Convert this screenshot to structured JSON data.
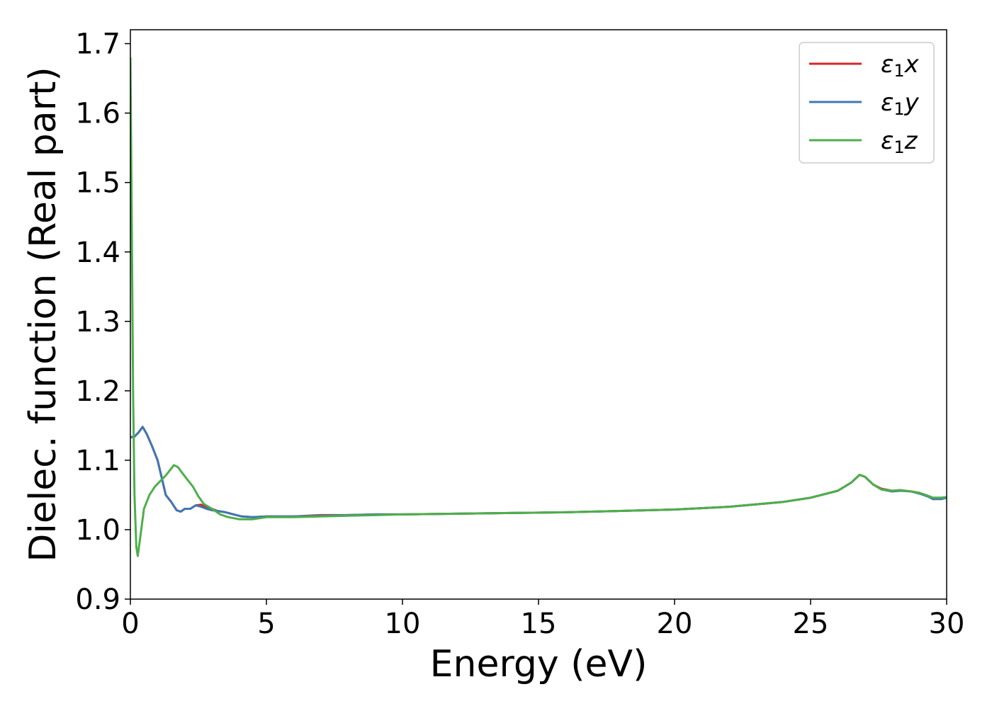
{
  "chart_data": {
    "type": "line",
    "title": "",
    "xlabel": "Energy (eV)",
    "ylabel": "Dielec. function (Real part)",
    "xlim": [
      0,
      30
    ],
    "ylim": [
      0.9,
      1.72
    ],
    "x_ticks": [
      0,
      5,
      10,
      15,
      20,
      25,
      30
    ],
    "x_tick_labels": [
      "0",
      "5",
      "10",
      "15",
      "20",
      "25",
      "30"
    ],
    "y_ticks": [
      0.9,
      1.0,
      1.1,
      1.2,
      1.3,
      1.4,
      1.5,
      1.6,
      1.7
    ],
    "y_tick_labels": [
      "0.9",
      "1.0",
      "1.1",
      "1.2",
      "1.3",
      "1.4",
      "1.5",
      "1.6",
      "1.7"
    ],
    "grid": false,
    "legend_position": "top-right",
    "series": [
      {
        "name": "ε1x",
        "name_base": "ε",
        "name_sub": "1",
        "name_tail": "x",
        "color": "#d62728",
        "points": [
          [
            0,
            1.133
          ],
          [
            0.15,
            1.134
          ],
          [
            0.3,
            1.14
          ],
          [
            0.45,
            1.148
          ],
          [
            0.6,
            1.138
          ],
          [
            0.8,
            1.12
          ],
          [
            1.0,
            1.1
          ],
          [
            1.15,
            1.075
          ],
          [
            1.3,
            1.05
          ],
          [
            1.5,
            1.04
          ],
          [
            1.7,
            1.028
          ],
          [
            1.85,
            1.026
          ],
          [
            2.0,
            1.03
          ],
          [
            2.2,
            1.03
          ],
          [
            2.4,
            1.035
          ],
          [
            2.6,
            1.036
          ],
          [
            2.8,
            1.033
          ],
          [
            3.0,
            1.03
          ],
          [
            3.2,
            1.027
          ],
          [
            3.5,
            1.025
          ],
          [
            3.8,
            1.022
          ],
          [
            4.1,
            1.019
          ],
          [
            4.5,
            1.018
          ],
          [
            5,
            1.019
          ],
          [
            6,
            1.019
          ],
          [
            7,
            1.021
          ],
          [
            8,
            1.021
          ],
          [
            9,
            1.022
          ],
          [
            10,
            1.022
          ],
          [
            12,
            1.023
          ],
          [
            14,
            1.024
          ],
          [
            16,
            1.025
          ],
          [
            18,
            1.027
          ],
          [
            20,
            1.029
          ],
          [
            22,
            1.033
          ],
          [
            24,
            1.04
          ],
          [
            25,
            1.046
          ],
          [
            26,
            1.056
          ],
          [
            26.5,
            1.068
          ],
          [
            26.8,
            1.079
          ],
          [
            27.0,
            1.076
          ],
          [
            27.3,
            1.065
          ],
          [
            27.6,
            1.059
          ],
          [
            28.0,
            1.056
          ],
          [
            28.3,
            1.057
          ],
          [
            28.7,
            1.055
          ],
          [
            29.0,
            1.053
          ],
          [
            29.3,
            1.049
          ],
          [
            29.5,
            1.044
          ],
          [
            29.8,
            1.045
          ],
          [
            30,
            1.046
          ]
        ]
      },
      {
        "name": "ε1y",
        "name_base": "ε",
        "name_sub": "1",
        "name_tail": "y",
        "color": "#3f77b4",
        "points": [
          [
            0,
            1.133
          ],
          [
            0.15,
            1.134
          ],
          [
            0.3,
            1.14
          ],
          [
            0.45,
            1.148
          ],
          [
            0.6,
            1.138
          ],
          [
            0.8,
            1.12
          ],
          [
            1.0,
            1.1
          ],
          [
            1.15,
            1.075
          ],
          [
            1.3,
            1.05
          ],
          [
            1.5,
            1.04
          ],
          [
            1.7,
            1.028
          ],
          [
            1.85,
            1.026
          ],
          [
            2.0,
            1.03
          ],
          [
            2.2,
            1.03
          ],
          [
            2.4,
            1.035
          ],
          [
            2.6,
            1.033
          ],
          [
            2.8,
            1.03
          ],
          [
            3.0,
            1.028
          ],
          [
            3.2,
            1.027
          ],
          [
            3.5,
            1.025
          ],
          [
            3.8,
            1.022
          ],
          [
            4.1,
            1.019
          ],
          [
            4.5,
            1.018
          ],
          [
            5,
            1.019
          ],
          [
            6,
            1.019
          ],
          [
            7,
            1.02
          ],
          [
            8,
            1.021
          ],
          [
            9,
            1.022
          ],
          [
            10,
            1.022
          ],
          [
            12,
            1.023
          ],
          [
            14,
            1.024
          ],
          [
            16,
            1.025
          ],
          [
            18,
            1.027
          ],
          [
            20,
            1.029
          ],
          [
            22,
            1.033
          ],
          [
            24,
            1.04
          ],
          [
            25,
            1.046
          ],
          [
            26,
            1.056
          ],
          [
            26.5,
            1.068
          ],
          [
            26.8,
            1.079
          ],
          [
            27.0,
            1.076
          ],
          [
            27.3,
            1.065
          ],
          [
            27.6,
            1.058
          ],
          [
            28.0,
            1.055
          ],
          [
            28.3,
            1.056
          ],
          [
            28.7,
            1.055
          ],
          [
            29.0,
            1.052
          ],
          [
            29.3,
            1.048
          ],
          [
            29.5,
            1.044
          ],
          [
            29.8,
            1.044
          ],
          [
            30,
            1.046
          ]
        ]
      },
      {
        "name": "ε1z",
        "name_base": "ε",
        "name_sub": "1",
        "name_tail": "z",
        "color": "#4daf4a",
        "points": [
          [
            0,
            1.68
          ],
          [
            0.05,
            1.45
          ],
          [
            0.1,
            1.2
          ],
          [
            0.15,
            1.05
          ],
          [
            0.22,
            0.975
          ],
          [
            0.27,
            0.962
          ],
          [
            0.35,
            0.985
          ],
          [
            0.5,
            1.03
          ],
          [
            0.7,
            1.05
          ],
          [
            0.9,
            1.062
          ],
          [
            1.1,
            1.07
          ],
          [
            1.3,
            1.078
          ],
          [
            1.5,
            1.088
          ],
          [
            1.6,
            1.093
          ],
          [
            1.75,
            1.09
          ],
          [
            1.9,
            1.082
          ],
          [
            2.1,
            1.072
          ],
          [
            2.3,
            1.062
          ],
          [
            2.5,
            1.048
          ],
          [
            2.7,
            1.037
          ],
          [
            3.0,
            1.03
          ],
          [
            3.3,
            1.022
          ],
          [
            3.6,
            1.018
          ],
          [
            4.0,
            1.015
          ],
          [
            4.5,
            1.015
          ],
          [
            5,
            1.018
          ],
          [
            6,
            1.018
          ],
          [
            7,
            1.019
          ],
          [
            8,
            1.02
          ],
          [
            9,
            1.021
          ],
          [
            10,
            1.022
          ],
          [
            12,
            1.023
          ],
          [
            14,
            1.024
          ],
          [
            16,
            1.025
          ],
          [
            18,
            1.027
          ],
          [
            20,
            1.029
          ],
          [
            22,
            1.033
          ],
          [
            24,
            1.04
          ],
          [
            25,
            1.046
          ],
          [
            26,
            1.056
          ],
          [
            26.5,
            1.068
          ],
          [
            26.8,
            1.079
          ],
          [
            27.0,
            1.076
          ],
          [
            27.3,
            1.065
          ],
          [
            27.6,
            1.058
          ],
          [
            28.0,
            1.056
          ],
          [
            28.3,
            1.057
          ],
          [
            28.7,
            1.055
          ],
          [
            29.0,
            1.053
          ],
          [
            29.3,
            1.049
          ],
          [
            29.5,
            1.046
          ],
          [
            29.8,
            1.046
          ],
          [
            30,
            1.047
          ]
        ]
      }
    ]
  }
}
